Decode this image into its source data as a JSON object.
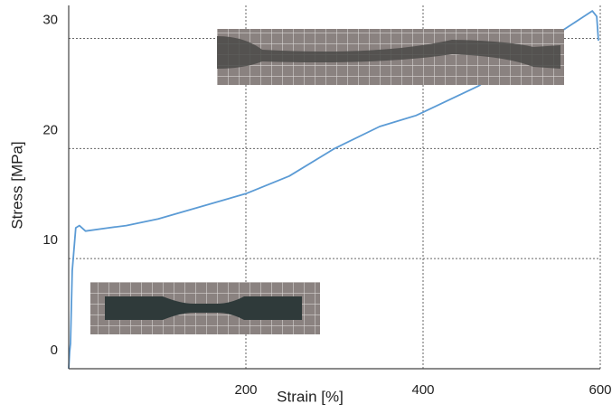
{
  "chart_data": {
    "type": "line",
    "x_label": "Strain [%]",
    "y_label": "Stress [MPa]",
    "x": [
      0,
      1,
      2,
      4,
      8,
      12,
      19,
      45,
      65,
      101,
      200,
      249,
      300,
      351,
      392,
      400,
      463,
      555,
      576,
      591,
      596,
      598
    ],
    "series": [
      {
        "color": "#5b9bd5",
        "values": [
          0,
          1.5,
          2.3,
          8.9,
          12.8,
          13,
          12.5,
          12.8,
          13,
          13.6,
          15.9,
          17.5,
          20,
          22,
          23,
          23.3,
          25.7,
          30.6,
          31.7,
          32.5,
          32,
          29.8
        ]
      }
    ],
    "xlim": [
      0,
      600
    ],
    "ylim": [
      0,
      33
    ],
    "xticks": [
      200,
      400,
      600
    ],
    "yticks": [
      0,
      10,
      20,
      30
    ],
    "grid": true
  }
}
